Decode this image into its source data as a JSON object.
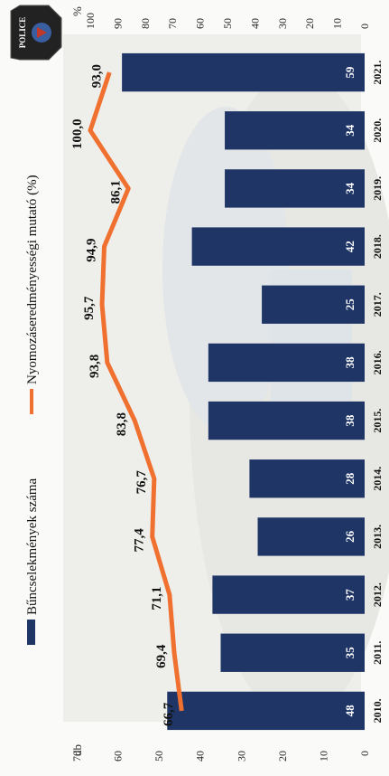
{
  "chart_data": {
    "type": "bar",
    "categories": [
      "2010.",
      "2011.",
      "2012.",
      "2013.",
      "2014.",
      "2015.",
      "2016.",
      "2017.",
      "2018.",
      "2019.",
      "2020.",
      "2021."
    ],
    "series": [
      {
        "name": "Bűncselekmények száma",
        "type": "bar",
        "axis": "left",
        "values": [
          48,
          35,
          37,
          26,
          28,
          38,
          38,
          25,
          42,
          34,
          34,
          59
        ],
        "labels": [
          "48",
          "35",
          "37",
          "26",
          "28",
          "38",
          "38",
          "25",
          "42",
          "34",
          "34",
          "59"
        ],
        "color": "#1f3566"
      },
      {
        "name": "Nyomozáseredményességi mutató (%)",
        "type": "line",
        "axis": "right",
        "values": [
          66.7,
          69.4,
          71.1,
          77.4,
          76.7,
          83.8,
          93.8,
          95.7,
          94.9,
          86.1,
          100.0,
          93.0
        ],
        "labels": [
          "66,7",
          "69,4",
          "71,1",
          "77,4",
          "76,7",
          "83,8",
          "93,8",
          "95,7",
          "94,9",
          "86,1",
          "100,0",
          "93,0"
        ],
        "color": "#f07030"
      }
    ],
    "y_left": {
      "label": "db",
      "ticks": [
        "0",
        "10",
        "20",
        "30",
        "40",
        "50",
        "60",
        "70"
      ],
      "ylim": [
        0,
        70
      ]
    },
    "y_right": {
      "label": "%",
      "ticks": [
        "0",
        "10",
        "20",
        "30",
        "40",
        "50",
        "60",
        "70",
        "80",
        "90",
        "100"
      ],
      "ylim": [
        0,
        100
      ]
    },
    "legend_position": "top",
    "badge_text": "POLICE"
  }
}
